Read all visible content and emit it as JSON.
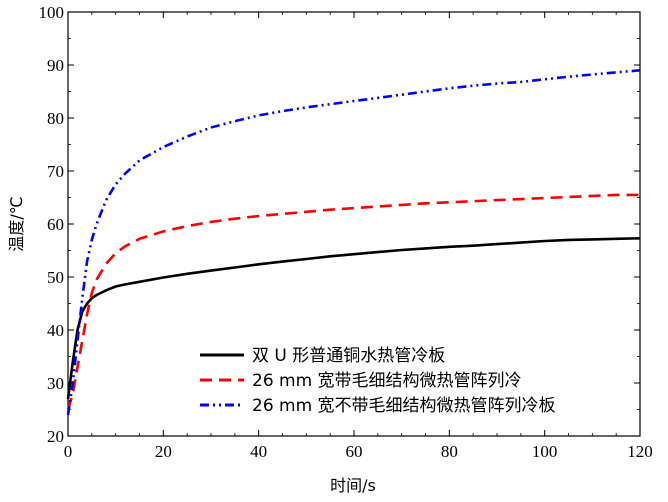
{
  "chart_data": {
    "type": "line",
    "xlabel": "时间/s",
    "ylabel": "温度/℃",
    "xlim": [
      0,
      120
    ],
    "ylim": [
      20,
      100
    ],
    "xticks": [
      0,
      20,
      40,
      60,
      80,
      100,
      120
    ],
    "yticks": [
      20,
      30,
      40,
      50,
      60,
      70,
      80,
      90,
      100
    ],
    "grid": false,
    "legend_position": "bottom-right",
    "series": [
      {
        "name": "双 U 形普通铜水热管冷板",
        "color": "#000000",
        "style": "solid",
        "x": [
          0,
          1,
          2,
          3,
          4,
          5,
          6,
          8,
          10,
          12,
          15,
          20,
          25,
          30,
          35,
          40,
          45,
          50,
          55,
          60,
          65,
          70,
          75,
          80,
          85,
          90,
          95,
          100,
          105,
          110,
          115,
          120
        ],
        "y": [
          27,
          34,
          40,
          43.5,
          45,
          46,
          46.6,
          47.5,
          48.2,
          48.6,
          49.1,
          49.9,
          50.6,
          51.2,
          51.8,
          52.4,
          52.9,
          53.4,
          53.9,
          54.3,
          54.7,
          55.1,
          55.4,
          55.7,
          55.9,
          56.2,
          56.5,
          56.8,
          57.0,
          57.1,
          57.2,
          57.3
        ]
      },
      {
        "name": "26  mm  宽带毛细结构微热管阵列冷",
        "color": "#ff0000",
        "style": "dashed",
        "x": [
          0,
          1,
          2,
          3,
          4,
          5,
          6,
          8,
          10,
          12,
          15,
          20,
          25,
          30,
          35,
          40,
          45,
          50,
          55,
          60,
          65,
          70,
          75,
          80,
          85,
          90,
          95,
          100,
          105,
          110,
          115,
          120
        ],
        "y": [
          25,
          28,
          33,
          38,
          43,
          47,
          49.5,
          52.5,
          54.5,
          55.8,
          57.2,
          58.6,
          59.6,
          60.4,
          61,
          61.5,
          61.9,
          62.3,
          62.7,
          63,
          63.3,
          63.6,
          63.9,
          64.1,
          64.3,
          64.5,
          64.7,
          64.9,
          65.1,
          65.3,
          65.5,
          65.5
        ]
      },
      {
        "name": "26 mm 宽不带毛细结构微热管阵列冷板",
        "color": "#0000ff",
        "style": "dash-dot-dot",
        "x": [
          0,
          1,
          2,
          3,
          4,
          5,
          6,
          8,
          10,
          12,
          15,
          20,
          25,
          30,
          35,
          40,
          45,
          50,
          55,
          60,
          65,
          70,
          75,
          80,
          85,
          90,
          95,
          100,
          105,
          110,
          115,
          120
        ],
        "y": [
          24,
          30,
          38,
          46,
          53,
          57,
          60,
          64.5,
          67.5,
          69.5,
          72,
          74.5,
          76.5,
          78.2,
          79.4,
          80.5,
          81.3,
          82,
          82.6,
          83.2,
          83.8,
          84.4,
          85,
          85.6,
          86.1,
          86.5,
          86.8,
          87.3,
          87.8,
          88.2,
          88.6,
          89
        ]
      }
    ]
  }
}
